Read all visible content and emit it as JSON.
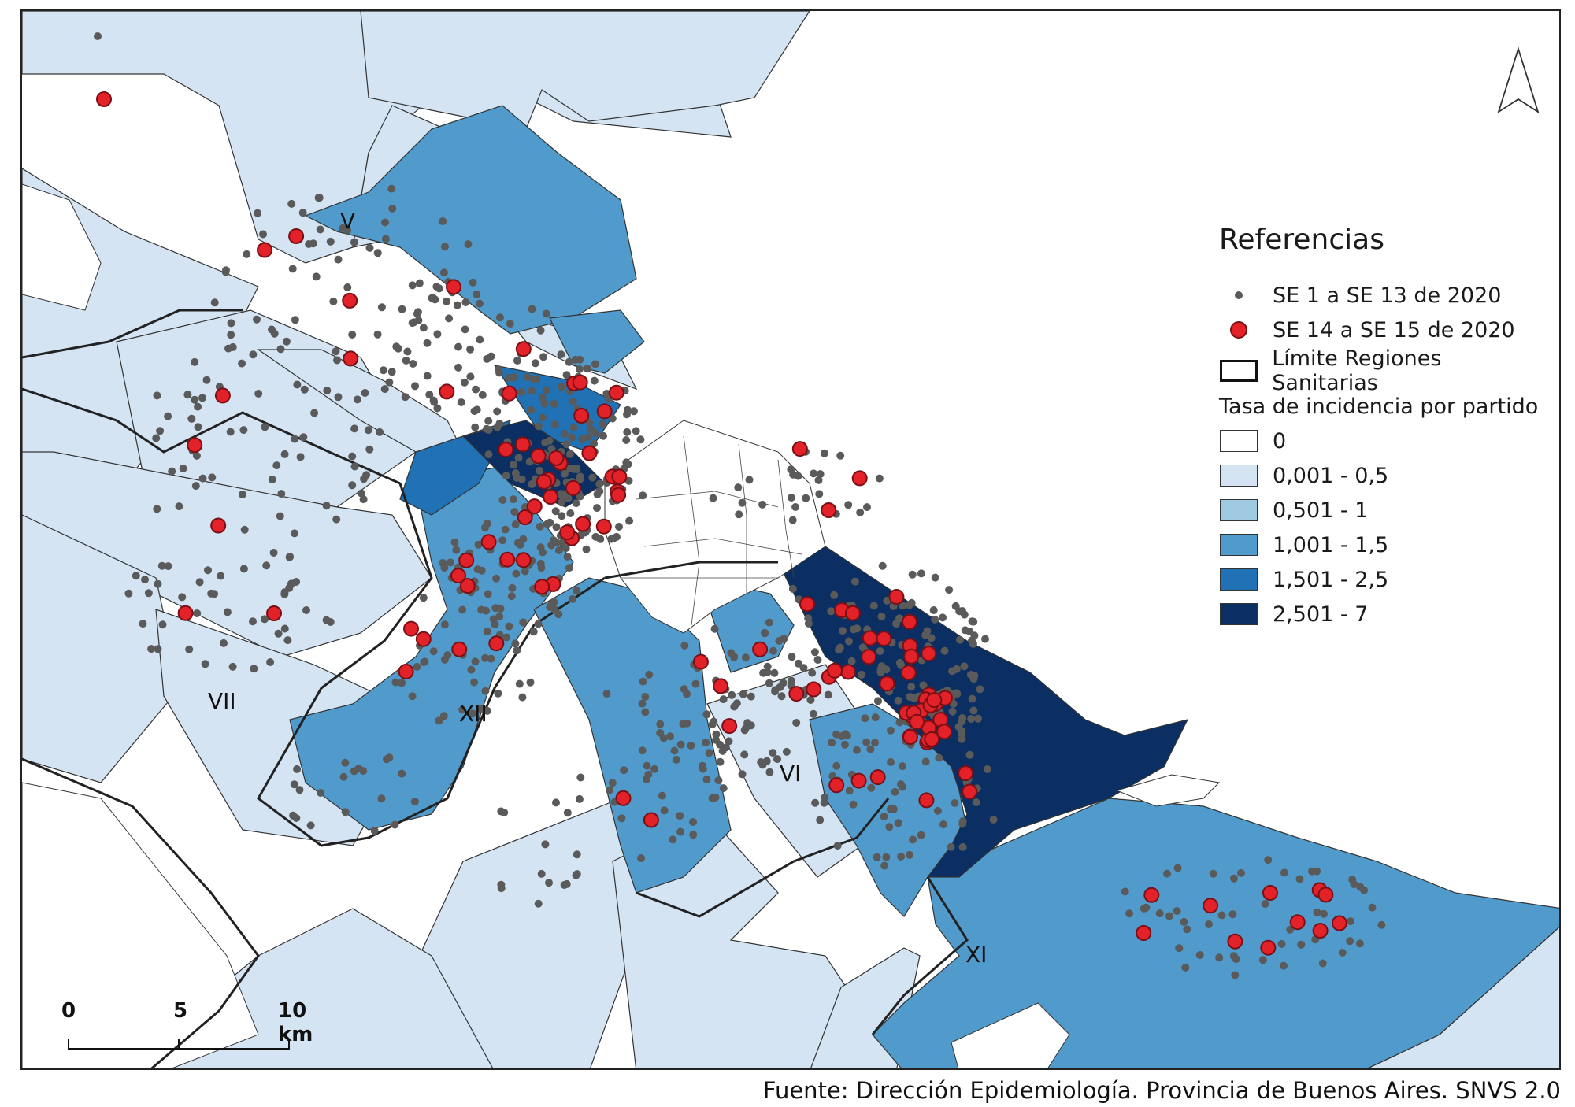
{
  "legend": {
    "title": "Referencias",
    "points_early": "SE 1 a SE 13 de 2020",
    "points_late": "SE 14 a SE 15 de 2020",
    "boundary": "Límite Regiones Sanitarias",
    "rate_title": "Tasa de incidencia por partido",
    "classes": [
      {
        "label": "0",
        "color": "#ffffff"
      },
      {
        "label": "0,001 - 0,5",
        "color": "#d4e4f3"
      },
      {
        "label": "0,501 - 1",
        "color": "#9fcae2"
      },
      {
        "label": "1,001 - 1,5",
        "color": "#519bcc"
      },
      {
        "label": "1,501 - 2,5",
        "color": "#2171b5"
      },
      {
        "label": "2,501 - 7",
        "color": "#0b2f63"
      }
    ]
  },
  "regions": {
    "r5": "V",
    "r7": "VII",
    "r12": "XII",
    "r6": "VI",
    "r11": "XI"
  },
  "scale": {
    "ticks": [
      "0",
      "5",
      "10 km"
    ]
  },
  "source": "Fuente: Dirección Epidemiología. Provincia de Buenos Aires. SNVS 2.0",
  "icons": {
    "north_arrow": "north-arrow-icon"
  }
}
